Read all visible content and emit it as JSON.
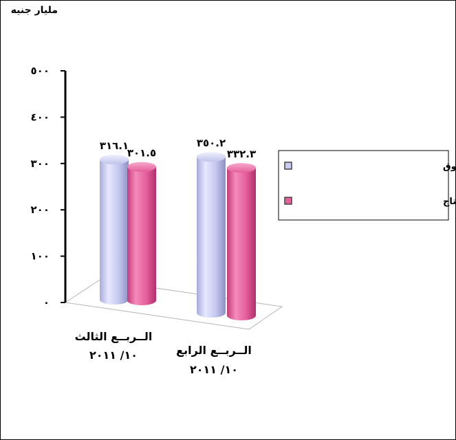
{
  "chart_data": {
    "type": "bar",
    "ylabel": "مليار جنيه",
    "ylim": [
      0,
      500
    ],
    "yticks": [
      0,
      100,
      200,
      300,
      400,
      500
    ],
    "ytick_labels": [
      "٠",
      "١٠٠",
      "٢٠٠",
      "٣٠٠",
      "٤٠٠",
      "٥٠٠"
    ],
    "categories": [
      {
        "line1": "الــربــع الثالث",
        "line2": "١٠/ ٢٠١١"
      },
      {
        "line1": "الــربــع الرابع",
        "line2": "١٠/ ٢٠١١"
      }
    ],
    "series": [
      {
        "name": "الناتج المحلى  بأسعار السوق",
        "color": "#c9ccf2",
        "values": [
          316.1,
          350.2
        ],
        "labels": [
          "٣١٦.١",
          "٣٥٠.٢"
        ]
      },
      {
        "name": "الناتج المحلى بتكلفة عوامل الإنتاج",
        "color": "#e8609a",
        "values": [
          301.5,
          332.3
        ],
        "labels": [
          "٣٠١.٥",
          "٣٣٢.٣"
        ]
      }
    ],
    "grid": false,
    "legend_position": "right",
    "style": "3d-cylinder"
  }
}
